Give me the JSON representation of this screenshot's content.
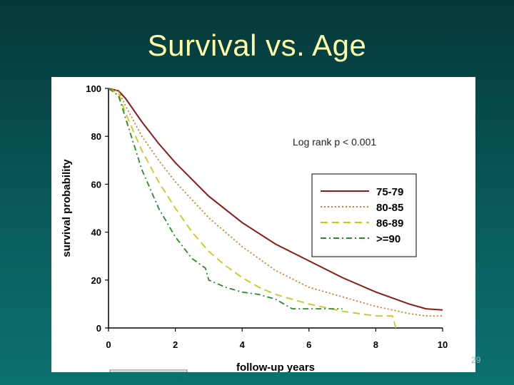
{
  "slide": {
    "title": "Survival vs. Age",
    "page_number": "29"
  },
  "colors": {
    "background": "#0a5a5a",
    "title": "#ffffa8"
  },
  "chart_data": {
    "type": "line",
    "title": "",
    "xlabel": "follow-up years",
    "ylabel": "survival probability",
    "xlim": [
      0,
      10
    ],
    "ylim": [
      0,
      100
    ],
    "x_ticks": [
      "0",
      "2",
      "4",
      "6",
      "8",
      "10"
    ],
    "y_ticks": [
      "0",
      "20",
      "40",
      "60",
      "80",
      "100"
    ],
    "annotation": "Log rank p < 0.001",
    "legend_position": "right-middle",
    "series": [
      {
        "name": "75-79",
        "color": "#8b1a1a",
        "style": "solid",
        "x": [
          0,
          0.3,
          0.5,
          1,
          1.5,
          2,
          3,
          4,
          5,
          6,
          7,
          8,
          9,
          9.5,
          10
        ],
        "y": [
          100,
          99,
          96,
          86,
          77,
          69,
          55,
          44,
          35,
          28,
          21,
          15,
          10,
          8,
          7.5
        ]
      },
      {
        "name": "80-85",
        "color": "#e07820",
        "style": "dotted",
        "x": [
          0,
          0.3,
          0.5,
          1,
          1.5,
          2,
          3,
          4,
          5,
          6,
          7,
          8,
          9,
          9.5,
          10
        ],
        "y": [
          100,
          99,
          93,
          80,
          70,
          61,
          46,
          34,
          24,
          17,
          13,
          9,
          6,
          5,
          5
        ]
      },
      {
        "name": "86-89",
        "color": "#c8c81e",
        "style": "dashed",
        "x": [
          0,
          0.3,
          0.5,
          1,
          1.5,
          2,
          2.5,
          3,
          3.5,
          4,
          4.5,
          5,
          5.5,
          6,
          7,
          7.5,
          8,
          8.5,
          8.6
        ],
        "y": [
          100,
          98,
          90,
          74,
          61,
          50,
          40,
          32,
          26,
          21,
          17,
          14,
          12,
          10,
          7,
          6,
          5,
          5,
          0
        ]
      },
      {
        "name": ">=90",
        "color": "#2a8a2a",
        "style": "dashdot",
        "x": [
          0,
          0.3,
          0.5,
          1,
          1.5,
          2,
          2.5,
          2.9,
          3,
          3.5,
          4,
          4.5,
          5,
          5.5,
          6,
          7
        ],
        "y": [
          100,
          97,
          88,
          66,
          50,
          38,
          29,
          25,
          20,
          17,
          15,
          14,
          12,
          8,
          8,
          8
        ]
      }
    ]
  }
}
